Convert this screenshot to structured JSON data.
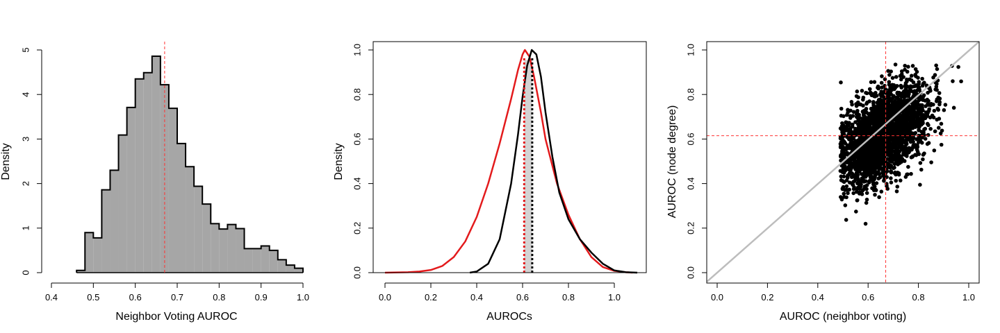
{
  "chart_data": [
    {
      "type": "histogram",
      "xlabel": "Neighbor Voting AUROC",
      "ylabel": "Density",
      "xlim": [
        0.4,
        1.0
      ],
      "ylim": [
        0,
        5
      ],
      "x_ticks": [
        "0.4",
        "0.5",
        "0.6",
        "0.7",
        "0.8",
        "0.9",
        "1.0"
      ],
      "y_ticks": [
        "0",
        "1",
        "2",
        "3",
        "4",
        "5"
      ],
      "bin_edges": [
        0.46,
        0.48,
        0.5,
        0.52,
        0.54,
        0.56,
        0.58,
        0.6,
        0.62,
        0.64,
        0.66,
        0.68,
        0.7,
        0.72,
        0.74,
        0.76,
        0.78,
        0.8,
        0.82,
        0.84,
        0.86,
        0.88,
        0.9,
        0.92,
        0.94,
        0.96,
        0.98,
        1.0
      ],
      "densities": [
        0.05,
        0.9,
        0.78,
        1.86,
        2.3,
        3.09,
        3.71,
        4.35,
        4.49,
        4.86,
        4.22,
        3.69,
        2.9,
        2.38,
        1.94,
        1.54,
        1.1,
        0.98,
        1.08,
        0.99,
        0.54,
        0.54,
        0.6,
        0.5,
        0.29,
        0.17,
        0.1
      ],
      "bar_color": "#a6a6a6",
      "reference_line_x": 0.67,
      "reference_line_color": "#ff3333"
    },
    {
      "type": "line",
      "xlabel": "AUROCs",
      "ylabel": "Density",
      "xlim": [
        0.0,
        1.1
      ],
      "ylim": [
        0.0,
        1.0
      ],
      "x_ticks": [
        "0.0",
        "0.2",
        "0.4",
        "0.6",
        "0.8",
        "1.0"
      ],
      "y_ticks": [
        "0.0",
        "0.2",
        "0.4",
        "0.6",
        "0.8",
        "1.0"
      ],
      "series": [
        {
          "color": "#e31a1c",
          "points": [
            [
              0.0,
              0.0
            ],
            [
              0.1,
              0.002
            ],
            [
              0.15,
              0.005
            ],
            [
              0.2,
              0.012
            ],
            [
              0.25,
              0.03
            ],
            [
              0.3,
              0.07
            ],
            [
              0.35,
              0.14
            ],
            [
              0.4,
              0.25
            ],
            [
              0.45,
              0.4
            ],
            [
              0.5,
              0.58
            ],
            [
              0.55,
              0.78
            ],
            [
              0.58,
              0.91
            ],
            [
              0.6,
              0.98
            ],
            [
              0.61,
              1.0
            ],
            [
              0.63,
              0.97
            ],
            [
              0.65,
              0.88
            ],
            [
              0.68,
              0.72
            ],
            [
              0.7,
              0.6
            ],
            [
              0.75,
              0.4
            ],
            [
              0.8,
              0.26
            ],
            [
              0.85,
              0.15
            ],
            [
              0.9,
              0.07
            ],
            [
              0.95,
              0.025
            ],
            [
              1.0,
              0.008
            ],
            [
              1.05,
              0.002
            ],
            [
              1.08,
              0.0
            ]
          ]
        },
        {
          "color": "#000000",
          "points": [
            [
              0.37,
              0.0
            ],
            [
              0.4,
              0.005
            ],
            [
              0.45,
              0.04
            ],
            [
              0.5,
              0.15
            ],
            [
              0.55,
              0.4
            ],
            [
              0.58,
              0.62
            ],
            [
              0.6,
              0.79
            ],
            [
              0.62,
              0.93
            ],
            [
              0.64,
              1.0
            ],
            [
              0.66,
              0.98
            ],
            [
              0.68,
              0.88
            ],
            [
              0.7,
              0.72
            ],
            [
              0.73,
              0.52
            ],
            [
              0.76,
              0.36
            ],
            [
              0.8,
              0.24
            ],
            [
              0.85,
              0.15
            ],
            [
              0.9,
              0.09
            ],
            [
              0.95,
              0.04
            ],
            [
              1.0,
              0.01
            ],
            [
              1.05,
              0.002
            ],
            [
              1.1,
              0.0
            ]
          ]
        }
      ],
      "vertical_lines": [
        {
          "x": 0.607,
          "color": "#e31a1c",
          "style": "dotted"
        },
        {
          "x": 0.642,
          "color": "#000000",
          "style": "dotted"
        }
      ],
      "shaded_band": [
        0.607,
        0.642
      ],
      "shade_color": "#d3d3d3"
    },
    {
      "type": "scatter",
      "xlabel": "AUROC (neighbor voting)",
      "ylabel": "AUROC (node degree)",
      "xlim": [
        0.0,
        1.0
      ],
      "ylim": [
        0.0,
        1.0
      ],
      "x_ticks": [
        "0.0",
        "0.2",
        "0.4",
        "0.6",
        "0.8",
        "1.0"
      ],
      "y_ticks": [
        "0.0",
        "0.2",
        "0.4",
        "0.6",
        "0.8",
        "1.0"
      ],
      "point_color": "#000000",
      "x_range_points": [
        0.49,
        0.97
      ],
      "y_range_points": [
        0.11,
        0.94
      ],
      "center": [
        0.66,
        0.6
      ],
      "diagonal_line": {
        "slope": 1,
        "intercept": 0,
        "color": "#bdbdbd"
      },
      "reference_lines": {
        "vertical_x": 0.67,
        "horizontal_y": 0.615,
        "color": "#ff3333"
      }
    }
  ]
}
